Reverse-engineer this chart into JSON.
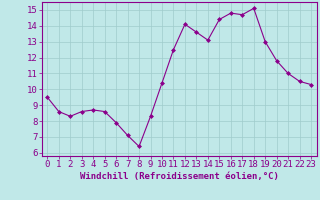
{
  "x": [
    0,
    1,
    2,
    3,
    4,
    5,
    6,
    7,
    8,
    9,
    10,
    11,
    12,
    13,
    14,
    15,
    16,
    17,
    18,
    19,
    20,
    21,
    22,
    23
  ],
  "y": [
    9.5,
    8.6,
    8.3,
    8.6,
    8.7,
    8.6,
    7.9,
    7.1,
    6.4,
    8.3,
    10.4,
    12.5,
    14.1,
    13.6,
    13.1,
    14.4,
    14.8,
    14.7,
    15.1,
    13.0,
    11.8,
    11.0,
    10.5,
    10.3
  ],
  "line_color": "#8B008B",
  "marker": "D",
  "marker_size": 2.0,
  "bg_color": "#c0e8e8",
  "grid_color": "#a0cccc",
  "xlabel": "Windchill (Refroidissement éolien,°C)",
  "xlabel_color": "#8B008B",
  "tick_color": "#8B008B",
  "spine_color": "#8B008B",
  "ylim": [
    5.8,
    15.5
  ],
  "xlim": [
    -0.5,
    23.5
  ],
  "yticks": [
    6,
    7,
    8,
    9,
    10,
    11,
    12,
    13,
    14,
    15
  ],
  "xticks": [
    0,
    1,
    2,
    3,
    4,
    5,
    6,
    7,
    8,
    9,
    10,
    11,
    12,
    13,
    14,
    15,
    16,
    17,
    18,
    19,
    20,
    21,
    22,
    23
  ],
  "tick_fontsize": 6.5,
  "xlabel_fontsize": 6.5
}
